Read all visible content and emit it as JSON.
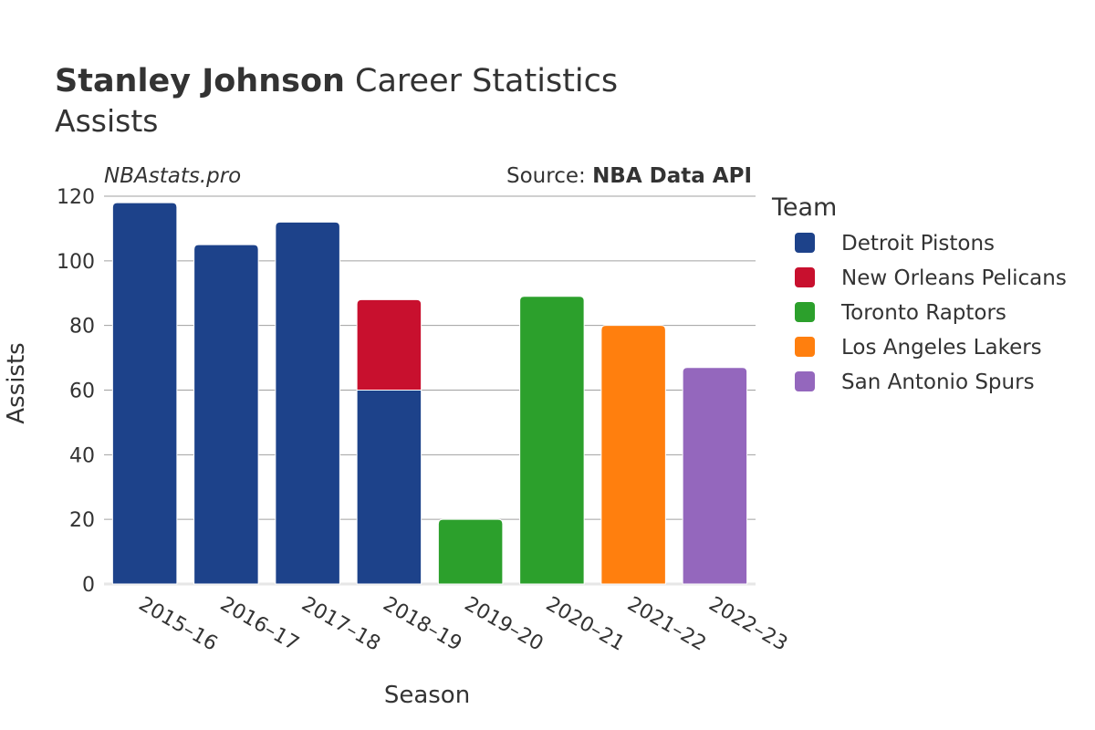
{
  "header": {
    "title_bold": "Stanley Johnson",
    "title_rest": " Career Statistics",
    "subtitle": "Assists"
  },
  "watermark": "NBAstats.pro",
  "source": {
    "prefix": "Source: ",
    "name": "NBA Data API"
  },
  "chart_data": {
    "type": "bar",
    "stacked": true,
    "categories": [
      "2015–16",
      "2016–17",
      "2017–18",
      "2018–19",
      "2019–20",
      "2020–21",
      "2021–22",
      "2022–23"
    ],
    "series": [
      {
        "name": "Detroit Pistons",
        "color": "#1d428a",
        "values": [
          118,
          105,
          112,
          60,
          0,
          0,
          0,
          0
        ]
      },
      {
        "name": "New Orleans Pelicans",
        "color": "#c8102e",
        "values": [
          0,
          0,
          0,
          28,
          0,
          0,
          0,
          0
        ]
      },
      {
        "name": "Toronto Raptors",
        "color": "#2ca02c",
        "values": [
          0,
          0,
          0,
          0,
          20,
          89,
          0,
          0
        ]
      },
      {
        "name": "Los Angeles Lakers",
        "color": "#ff7f0e",
        "values": [
          0,
          0,
          0,
          0,
          0,
          0,
          80,
          0
        ]
      },
      {
        "name": "San Antonio Spurs",
        "color": "#9467bd",
        "values": [
          0,
          0,
          0,
          0,
          0,
          0,
          0,
          67
        ]
      }
    ],
    "xlabel": "Season",
    "ylabel": "Assists",
    "ylim": [
      0,
      120
    ],
    "yticks": [
      0,
      20,
      40,
      60,
      80,
      100,
      120
    ],
    "grid": true,
    "legend": {
      "title": "Team",
      "placement": "right"
    }
  }
}
